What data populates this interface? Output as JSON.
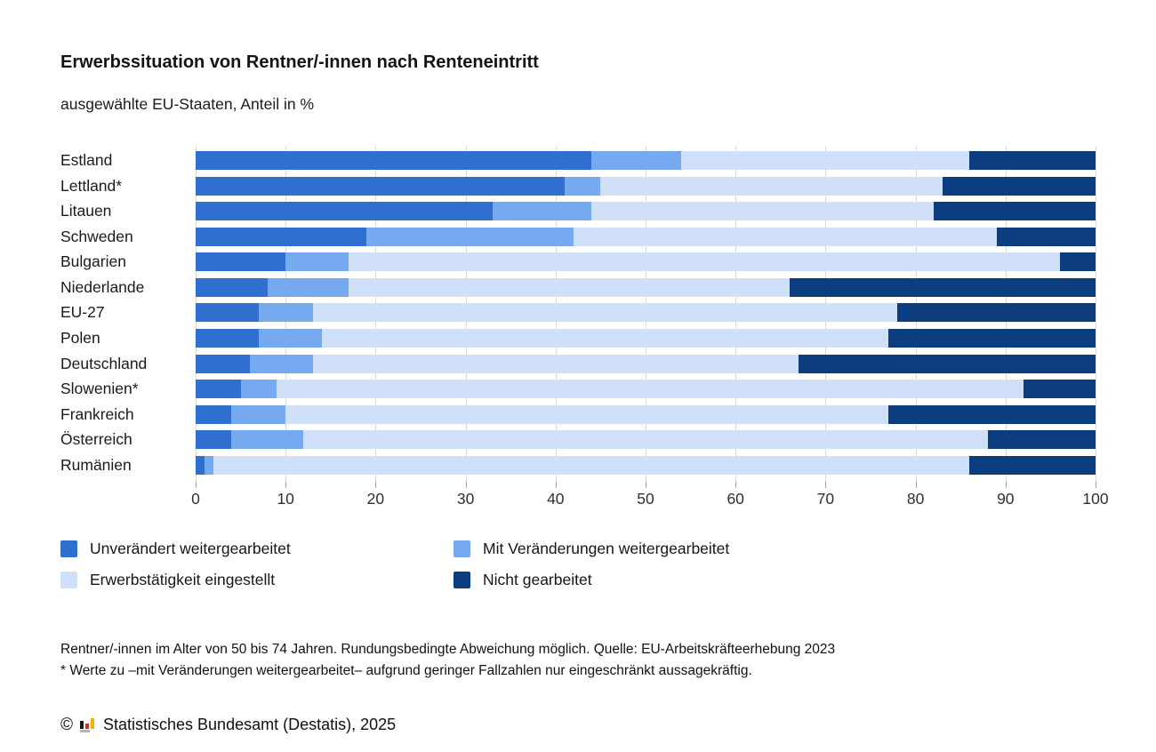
{
  "header": {
    "title": "Erwerbssituation von Rentner/-innen nach Renteneintritt",
    "subtitle": "ausgewählte EU-Staaten, Anteil in %"
  },
  "chart_data": {
    "type": "bar",
    "stacked": true,
    "orientation": "horizontal",
    "title": "Erwerbssituation von Rentner/-innen nach Renteneintritt",
    "subtitle": "ausgewählte EU-Staaten, Anteil in %",
    "categories": [
      "Estland",
      "Lettland*",
      "Litauen",
      "Schweden",
      "Bulgarien",
      "Niederlande",
      "EU-27",
      "Polen",
      "Deutschland",
      "Slowenien*",
      "Frankreich",
      "Österreich",
      "Rumänien"
    ],
    "series": [
      {
        "name": "Unverändert weitergearbeitet",
        "color": "#2e6fd0",
        "values": [
          44,
          41,
          33,
          19,
          10,
          8,
          7,
          7,
          6,
          5,
          4,
          4,
          1
        ]
      },
      {
        "name": "Mit Veränderungen weitergearbeitet",
        "color": "#76aaf0",
        "values": [
          10,
          4,
          11,
          23,
          7,
          9,
          6,
          7,
          7,
          4,
          6,
          8,
          1
        ]
      },
      {
        "name": "Erwerbstätigkeit eingestellt",
        "color": "#cfe0f8",
        "values": [
          32,
          38,
          38,
          47,
          79,
          49,
          65,
          63,
          54,
          83,
          67,
          76,
          84
        ]
      },
      {
        "name": "Nicht gearbeitet",
        "color": "#0b3d7f",
        "values": [
          14,
          17,
          18,
          11,
          4,
          34,
          22,
          23,
          33,
          8,
          23,
          12,
          14
        ]
      }
    ],
    "xlabel": "",
    "ylabel": "",
    "xlim": [
      0,
      100
    ],
    "x_ticks": [
      0,
      10,
      20,
      30,
      40,
      50,
      60,
      70,
      80,
      90,
      100
    ],
    "grid": true,
    "legend_position": "bottom"
  },
  "footnotes": {
    "line1": "Rentner/-innen im Alter von 50 bis 74 Jahren. Rundungsbedingte Abweichung möglich. Quelle: EU-Arbeitskräfteerhebung 2023",
    "line2": "* Werte zu –mit Veränderungen weitergearbeitet– aufgrund geringer Fallzahlen nur eingeschränkt aussagekräftig."
  },
  "copyright": {
    "symbol": "©",
    "logo": "destatis-bars-icon",
    "text": "Statistisches Bundesamt (Destatis), 2025",
    "logo_colors": {
      "black": "#1a1a1a",
      "red": "#d42b1e",
      "gold": "#f0b400",
      "gray": "#b3b3b3"
    }
  },
  "style_colors": {
    "gridline": "#d9d9d9",
    "tick": "#9b9b9b",
    "axis_text": "#303030"
  }
}
